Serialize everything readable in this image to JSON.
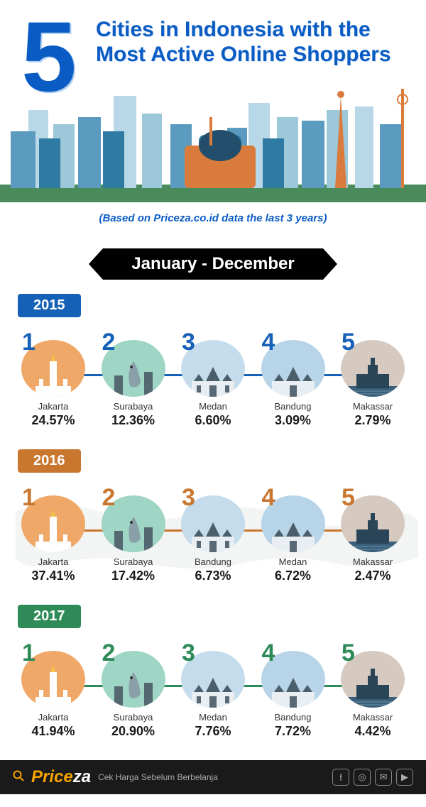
{
  "header": {
    "number": "5",
    "title": "Cities in Indonesia with the Most Active Online Shoppers",
    "subtitle": "(Based on Priceza.co.id data  the last 3 years)",
    "title_color": "#0a5cc4"
  },
  "banner": "January - December",
  "years": [
    {
      "year": "2015",
      "badge_color": "#1561b8",
      "rank_color": "#1561b8",
      "line_color": "#1561b8",
      "cities": [
        {
          "rank": "1",
          "name": "Jakarta",
          "pct": "24.57%",
          "bg": "#f0a869"
        },
        {
          "rank": "2",
          "name": "Surabaya",
          "pct": "12.36%",
          "bg": "#9fd5c5"
        },
        {
          "rank": "3",
          "name": "Medan",
          "pct": "6.60%",
          "bg": "#c5dcec"
        },
        {
          "rank": "4",
          "name": "Bandung",
          "pct": "3.09%",
          "bg": "#b8d4e8"
        },
        {
          "rank": "5",
          "name": "Makassar",
          "pct": "2.79%",
          "bg": "#d6c9c0"
        }
      ]
    },
    {
      "year": "2016",
      "badge_color": "#c9762e",
      "rank_color": "#c9762e",
      "line_color": "#c9762e",
      "cities": [
        {
          "rank": "1",
          "name": "Jakarta",
          "pct": "37.41%",
          "bg": "#f0a869"
        },
        {
          "rank": "2",
          "name": "Surabaya",
          "pct": "17.42%",
          "bg": "#9fd5c5"
        },
        {
          "rank": "3",
          "name": "Bandung",
          "pct": "6.73%",
          "bg": "#c5dcec"
        },
        {
          "rank": "4",
          "name": "Medan",
          "pct": "6.72%",
          "bg": "#b8d4e8"
        },
        {
          "rank": "5",
          "name": "Makassar",
          "pct": "2.47%",
          "bg": "#d6c9c0"
        }
      ]
    },
    {
      "year": "2017",
      "badge_color": "#2e8b57",
      "rank_color": "#2e8b57",
      "line_color": "#2e8b57",
      "cities": [
        {
          "rank": "1",
          "name": "Jakarta",
          "pct": "41.94%",
          "bg": "#f0a869"
        },
        {
          "rank": "2",
          "name": "Surabaya",
          "pct": "20.90%",
          "bg": "#9fd5c5"
        },
        {
          "rank": "3",
          "name": "Medan",
          "pct": "7.76%",
          "bg": "#c5dcec"
        },
        {
          "rank": "4",
          "name": "Bandung",
          "pct": "7.72%",
          "bg": "#b8d4e8"
        },
        {
          "rank": "5",
          "name": "Makassar",
          "pct": "4.42%",
          "bg": "#d6c9c0"
        }
      ]
    }
  ],
  "footer": {
    "logo_a": "Price",
    "logo_b": "za",
    "tagline": "Cek Harga Sebelum Berbelanja",
    "logo_color_a": "#f7a400",
    "logo_color_b": "#ffffff",
    "bg": "#1a1a1a",
    "social": [
      "f",
      "◎",
      "✉",
      "▶"
    ]
  },
  "skyline_colors": {
    "back1": "#b8d8e8",
    "back2": "#9cc8da",
    "mid": "#5a9bbf",
    "front1": "#2f7aa3",
    "front2": "#234e6b",
    "accent": "#d97b3d",
    "green": "#4a8b5c"
  }
}
